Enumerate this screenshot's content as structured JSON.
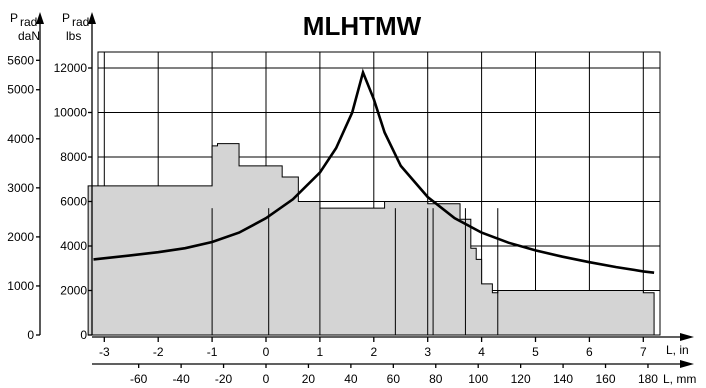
{
  "chart_data": {
    "type": "line",
    "title": "MLHTMW",
    "y_left_kg": {
      "label_main": "P",
      "label_sub": "rad",
      "unit": "daN",
      "ticks": [
        "0",
        "1000",
        "2000",
        "3000",
        "4000",
        "5000",
        "5600"
      ],
      "tick_values": [
        0,
        1000,
        2000,
        3000,
        4000,
        5000,
        5600
      ],
      "range": [
        0,
        5443
      ]
    },
    "y_left_lbs": {
      "label_main": "P",
      "label_sub": "rad",
      "unit": "lbs",
      "ticks": [
        "0",
        "2000",
        "4000",
        "6000",
        "8000",
        "10000",
        "12000"
      ],
      "tick_values": [
        0,
        2000,
        4000,
        6000,
        8000,
        10000,
        12000
      ],
      "range": [
        0,
        12000
      ]
    },
    "x_in": {
      "label": "L, in",
      "ticks": [
        "-3",
        "-2",
        "-1",
        "0",
        "1",
        "2",
        "3",
        "4",
        "5",
        "6",
        "7"
      ],
      "tick_values": [
        -3,
        -2,
        -1,
        0,
        1,
        2,
        3,
        4,
        5,
        6,
        7
      ]
    },
    "x_mm": {
      "label": "L, mm",
      "ticks": [
        "-60",
        "-40",
        "-20",
        "0",
        "20",
        "40",
        "60",
        "80",
        "100",
        "120",
        "140",
        "160",
        "180"
      ],
      "tick_values": [
        -60,
        -40,
        -20,
        0,
        20,
        40,
        60,
        80,
        100,
        120,
        140,
        160,
        180
      ]
    },
    "grid": true,
    "series": [
      {
        "x": [
          -3.2,
          -2.5,
          -2.0,
          -1.5,
          -1.0,
          -0.5,
          0.0,
          0.5,
          1.0,
          1.3,
          1.6,
          1.8,
          2.0,
          2.2,
          2.5,
          3.0,
          3.5,
          4.0,
          4.5,
          5.0,
          5.5,
          6.0,
          6.5,
          7.0,
          7.2
        ],
        "y": [
          3400,
          3580,
          3720,
          3900,
          4180,
          4600,
          5250,
          6100,
          7300,
          8400,
          10000,
          11800,
          10600,
          9100,
          7600,
          6200,
          5250,
          4600,
          4150,
          3800,
          3520,
          3270,
          3050,
          2860,
          2800
        ]
      }
    ]
  }
}
